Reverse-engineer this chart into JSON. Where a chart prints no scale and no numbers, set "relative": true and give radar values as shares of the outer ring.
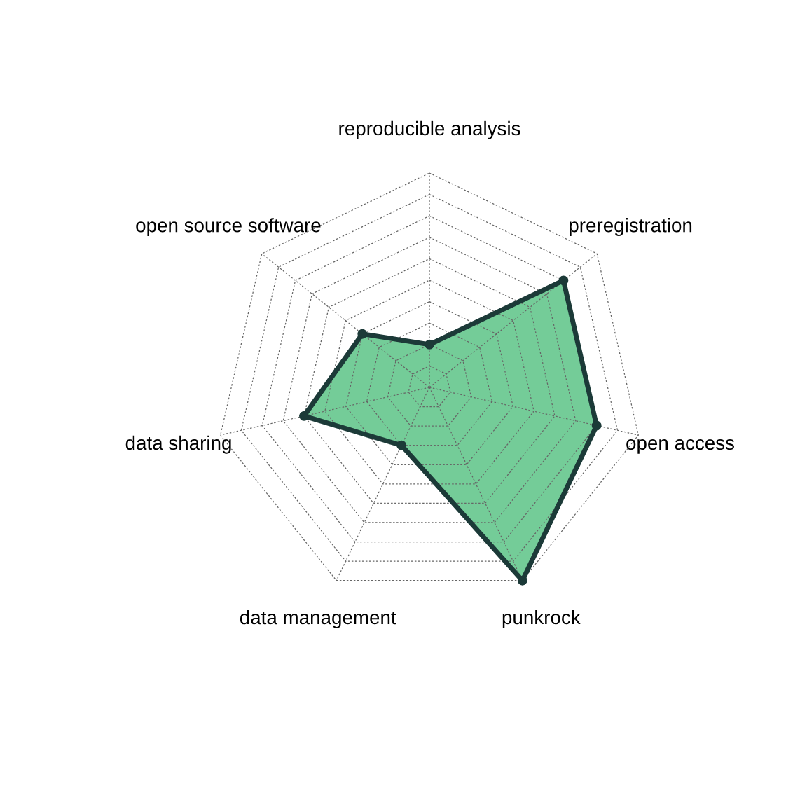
{
  "chart_data": {
    "type": "radar",
    "relative": true,
    "grid": true,
    "marker": "circle",
    "line_style": "solid",
    "categories": [
      "reproducible analysis",
      "preregistration",
      "open access",
      "punkrock",
      "data management",
      "data sharing",
      "open source software"
    ],
    "series": [
      {
        "color": "#74cc98",
        "values": [
          0.2,
          0.8,
          0.8,
          1.0,
          0.3,
          0.6,
          0.4
        ]
      }
    ]
  }
}
